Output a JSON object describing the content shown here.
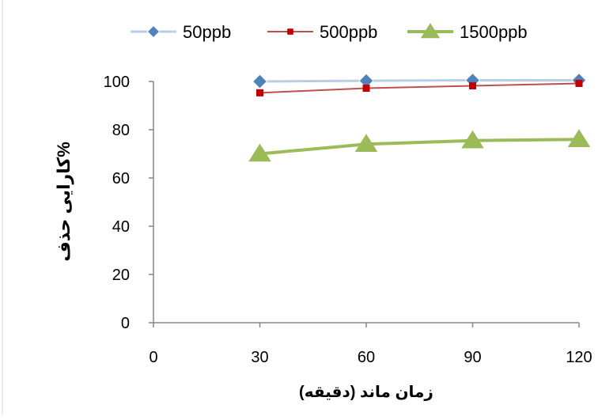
{
  "chart_data": {
    "type": "line",
    "title": "",
    "xlabel": "زمان ماند (دقیقه)",
    "ylabel": "کارایی حذف%",
    "xlim": [
      0,
      120
    ],
    "ylim": [
      0,
      100
    ],
    "x_ticks": [
      0,
      30,
      60,
      90,
      120
    ],
    "y_ticks": [
      0,
      20,
      40,
      60,
      80,
      100
    ],
    "grid": false,
    "legend_position": "top",
    "series": [
      {
        "name": "50ppb",
        "x": [
          30,
          60,
          90,
          120
        ],
        "y": [
          100,
          100.3,
          100.5,
          100.5
        ],
        "color": "#4f81bd",
        "line_color": "#b9cde5",
        "marker": "diamond"
      },
      {
        "name": "500ppb",
        "x": [
          30,
          60,
          90,
          120
        ],
        "y": [
          95.3,
          97.2,
          98.2,
          99.2
        ],
        "color": "#c00000",
        "line_color": "#c0504d",
        "marker": "square"
      },
      {
        "name": "1500ppb",
        "x": [
          30,
          60,
          90,
          120
        ],
        "y": [
          70,
          74,
          75.5,
          76
        ],
        "color": "#9bbb59",
        "line_color": "#9bbb59",
        "marker": "triangle"
      }
    ]
  }
}
